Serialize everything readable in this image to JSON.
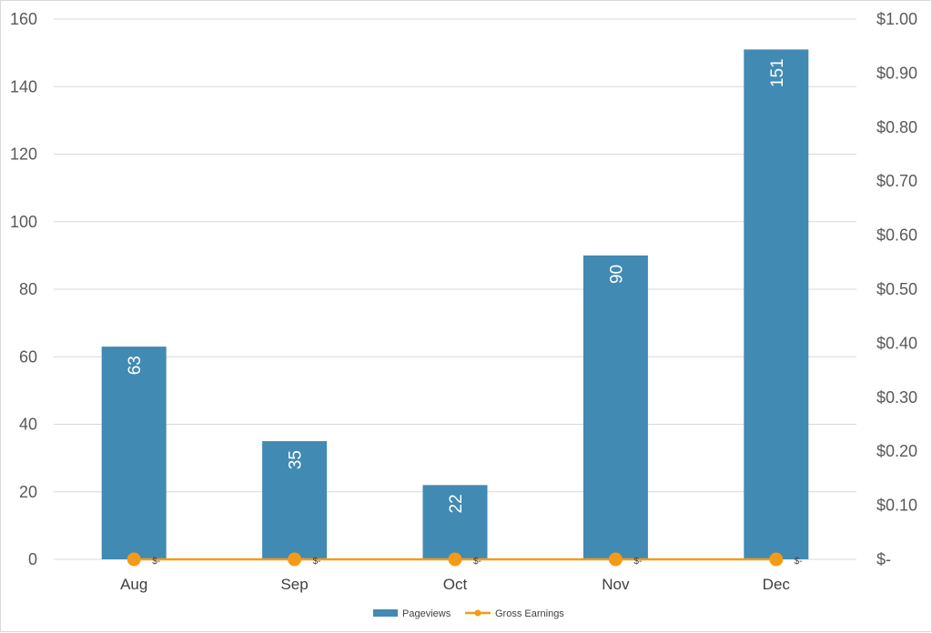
{
  "chart_data": {
    "type": "bar",
    "categories": [
      "Aug",
      "Sep",
      "Oct",
      "Nov",
      "Dec"
    ],
    "series": [
      {
        "name": "Pageviews",
        "type": "bar",
        "axis": "left",
        "color": "#418ab3",
        "values": [
          63,
          35,
          22,
          90,
          151
        ],
        "data_labels": [
          "63",
          "35",
          "22",
          "90",
          "151"
        ]
      },
      {
        "name": "Gross Earnings",
        "type": "line",
        "axis": "right",
        "color": "#f59a16",
        "marker": "circle",
        "values": [
          0,
          0,
          0,
          0,
          0
        ],
        "data_labels": [
          "$-",
          "$-",
          "$-",
          "$-",
          "$-"
        ]
      }
    ],
    "y_left": {
      "ylim": [
        0,
        160
      ],
      "ticks": [
        0,
        20,
        40,
        60,
        80,
        100,
        120,
        140,
        160
      ],
      "tick_labels": [
        "0",
        "20",
        "40",
        "60",
        "80",
        "100",
        "120",
        "140",
        "160"
      ]
    },
    "y_right": {
      "ylim": [
        0,
        1.0
      ],
      "ticks": [
        0,
        0.1,
        0.2,
        0.3,
        0.4,
        0.5,
        0.6,
        0.7,
        0.8,
        0.9,
        1.0
      ],
      "tick_labels": [
        "$-",
        "$0.10",
        "$0.20",
        "$0.30",
        "$0.40",
        "$0.50",
        "$0.60",
        "$0.70",
        "$0.80",
        "$0.90",
        "$1.00"
      ]
    },
    "title": "",
    "xlabel": "",
    "ylabel": "",
    "grid": true,
    "legend": {
      "placement": "bottom",
      "entries": [
        "Pageviews",
        "Gross Earnings"
      ]
    },
    "gridline_color": "#d9d9d9"
  }
}
